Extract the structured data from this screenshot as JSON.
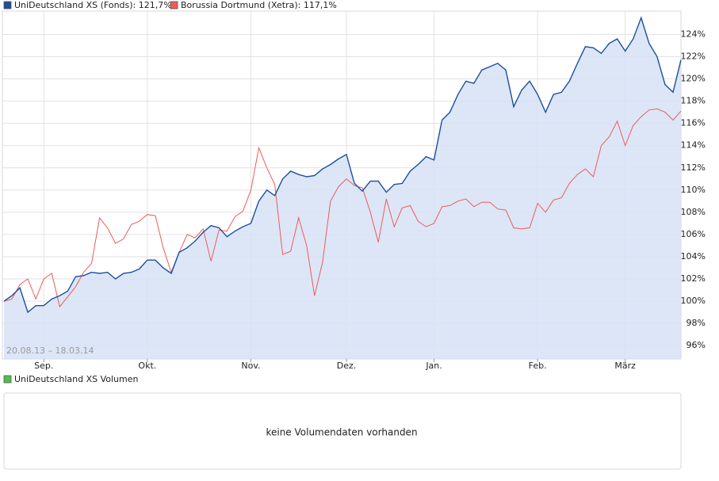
{
  "chart_data": {
    "type": "line",
    "annotation": "20.08.13 – 18.03.14",
    "categories": [
      null,
      null,
      null,
      null,
      null,
      "Sep.",
      null,
      null,
      null,
      null,
      null,
      null,
      null,
      null,
      null,
      null,
      null,
      null,
      "Okt.",
      null,
      null,
      null,
      null,
      null,
      null,
      null,
      null,
      null,
      null,
      null,
      null,
      "Nov.",
      null,
      null,
      null,
      null,
      null,
      null,
      null,
      null,
      null,
      null,
      null,
      "Dez.",
      null,
      null,
      null,
      null,
      null,
      null,
      null,
      null,
      null,
      null,
      "Jan.",
      null,
      null,
      null,
      null,
      null,
      null,
      null,
      null,
      null,
      null,
      null,
      null,
      "Feb.",
      null,
      null,
      null,
      null,
      null,
      null,
      null,
      null,
      null,
      null,
      "März",
      null,
      null,
      null,
      null,
      null,
      null,
      null
    ],
    "series": [
      {
        "name": "UniDeutschland XS (Fonds): 121,7%",
        "color": "#1c4f9c",
        "fill": "#d6e2f6",
        "values": [
          100.0,
          100.5,
          101.2,
          99.0,
          99.6,
          99.6,
          100.2,
          100.5,
          100.9,
          102.2,
          102.3,
          102.6,
          102.5,
          102.6,
          102.0,
          102.5,
          102.6,
          102.9,
          103.7,
          103.7,
          103.0,
          102.5,
          104.4,
          104.8,
          105.4,
          106.2,
          106.8,
          106.6,
          105.8,
          106.3,
          106.7,
          107.0,
          109.0,
          110.0,
          109.5,
          111.0,
          111.7,
          111.4,
          111.2,
          111.3,
          111.9,
          112.3,
          112.8,
          113.2,
          110.6,
          109.9,
          110.8,
          110.8,
          109.8,
          110.5,
          110.6,
          111.7,
          112.3,
          113.0,
          112.7,
          116.3,
          117.0,
          118.6,
          119.8,
          119.6,
          120.8,
          121.1,
          121.4,
          120.8,
          117.5,
          119.0,
          119.8,
          118.6,
          117.0,
          118.6,
          118.8,
          119.8,
          121.4,
          122.9,
          122.8,
          122.3,
          123.2,
          123.6,
          122.5,
          123.6,
          125.5,
          123.2,
          122.0,
          119.5,
          118.8,
          121.7
        ]
      },
      {
        "name": "Borussia Dortmund (Xetra): 117,1%",
        "color": "#f05a5a",
        "values": [
          100.0,
          100.2,
          101.5,
          102.0,
          100.2,
          102.0,
          102.5,
          99.5,
          100.4,
          101.3,
          102.6,
          103.4,
          107.5,
          106.6,
          105.2,
          105.6,
          106.9,
          107.2,
          107.8,
          107.7,
          104.8,
          102.6,
          104.4,
          106.0,
          105.7,
          106.5,
          103.6,
          106.4,
          106.3,
          107.6,
          108.1,
          110.0,
          113.8,
          112.0,
          110.5,
          104.2,
          104.5,
          107.5,
          105.0,
          100.5,
          103.5,
          109.0,
          110.3,
          111.0,
          110.4,
          110.2,
          108.0,
          105.3,
          109.2,
          106.7,
          108.4,
          108.6,
          107.2,
          106.7,
          107.0,
          108.5,
          108.6,
          109.0,
          109.2,
          108.5,
          108.9,
          108.9,
          108.3,
          108.2,
          106.6,
          106.5,
          106.6,
          108.8,
          108.0,
          109.1,
          109.3,
          110.6,
          111.4,
          111.9,
          111.2,
          114.0,
          114.8,
          116.2,
          114.0,
          115.8,
          116.6,
          117.2,
          117.3,
          117.0,
          116.3,
          117.1
        ]
      }
    ],
    "ylim": [
      94.8,
      126.1
    ],
    "yticks": [
      {
        "value": 96,
        "label": "96%"
      },
      {
        "value": 98,
        "label": "98%"
      },
      {
        "value": 100,
        "label": "100%"
      },
      {
        "value": 102,
        "label": "102%"
      },
      {
        "value": 104,
        "label": "104%"
      },
      {
        "value": 106,
        "label": "106%"
      },
      {
        "value": 108,
        "label": "108%"
      },
      {
        "value": 110,
        "label": "110%"
      },
      {
        "value": 112,
        "label": "112%"
      },
      {
        "value": 114,
        "label": "114%"
      },
      {
        "value": 116,
        "label": "116%"
      },
      {
        "value": 118,
        "label": "118%"
      },
      {
        "value": 120,
        "label": "120%"
      },
      {
        "value": 122,
        "label": "122%"
      },
      {
        "value": 124,
        "label": "124%"
      }
    ],
    "grid": true
  },
  "volume_panel": {
    "legend": "UniDeutschland XS Volumen",
    "color": "#4cc04c",
    "message": "keine Volumendaten vorhanden"
  }
}
